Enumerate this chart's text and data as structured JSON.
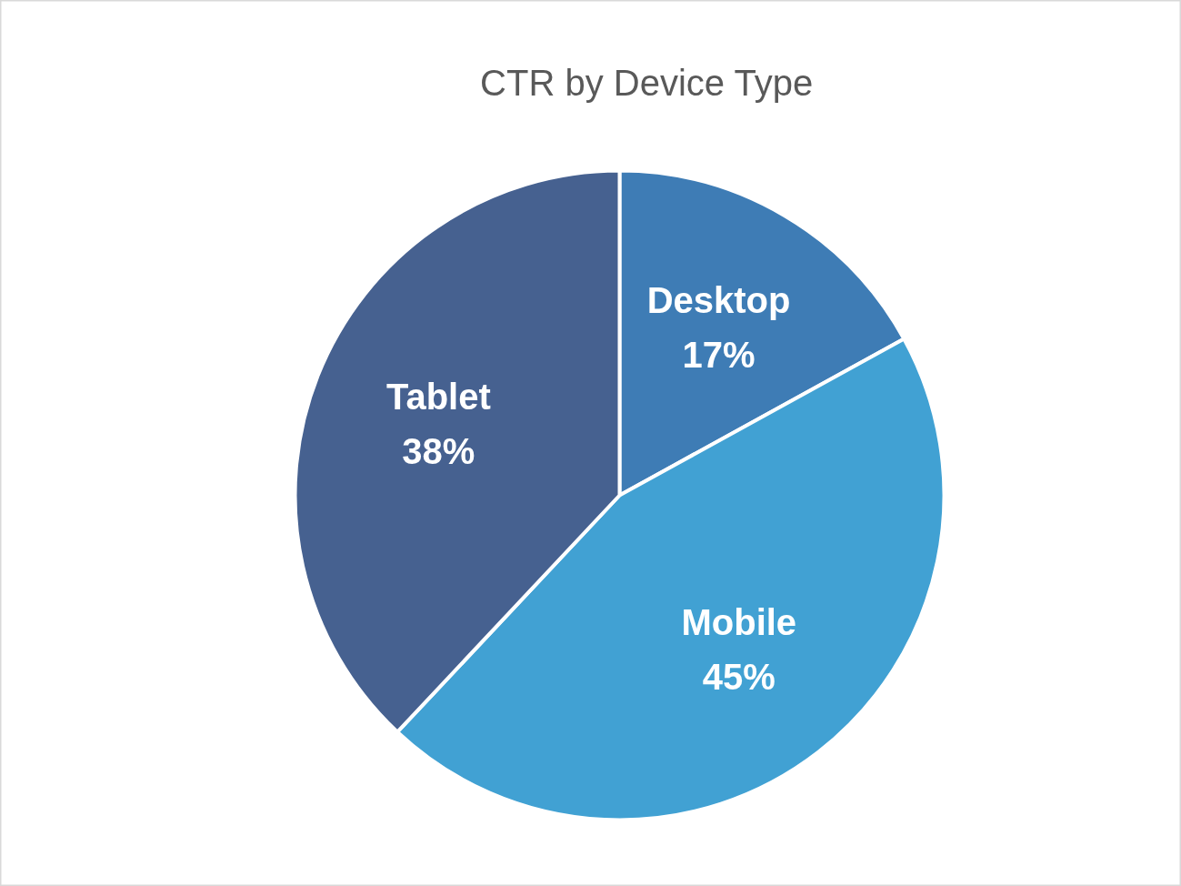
{
  "chart_data": {
    "type": "pie",
    "title": "CTR by Device Type",
    "categories": [
      "Desktop",
      "Mobile",
      "Tablet"
    ],
    "values": [
      17,
      45,
      38
    ],
    "colors": [
      "#3e7cb5",
      "#41a1d3",
      "#466190"
    ],
    "value_labels": [
      "17%",
      "45%",
      "38%"
    ]
  }
}
